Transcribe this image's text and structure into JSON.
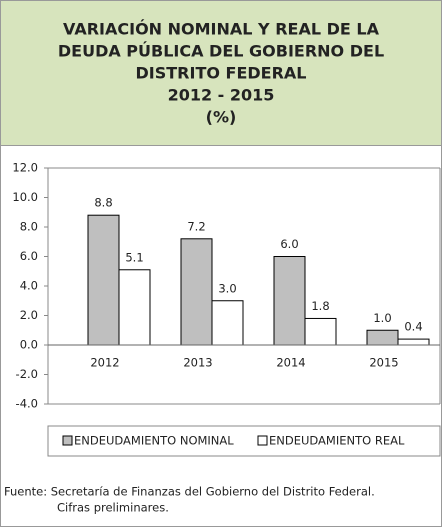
{
  "chart_data": {
    "type": "bar",
    "title": [
      "VARIACIÓN NOMINAL Y REAL DE LA",
      "DEUDA PÚBLICA DEL GOBIERNO DEL",
      "DISTRITO FEDERAL",
      "2012 - 2015",
      "(%)"
    ],
    "categories": [
      "2012",
      "2013",
      "2014",
      "2015"
    ],
    "series": [
      {
        "name": "ENDEUDAMIENTO NOMINAL",
        "color": "#bfbfbf",
        "values": [
          8.8,
          7.2,
          6.0,
          1.0
        ],
        "value_labels": [
          "8.8",
          "7.2",
          "6.0",
          "1.0"
        ]
      },
      {
        "name": "ENDEUDAMIENTO REAL",
        "color": "#ffffff",
        "values": [
          5.1,
          3.0,
          1.8,
          0.4
        ],
        "value_labels": [
          "5.1",
          "3.0",
          "1.8",
          "0.4"
        ]
      }
    ],
    "ylim": [
      -4,
      12
    ],
    "yticks": [
      {
        "value": -4,
        "label": "-4.0"
      },
      {
        "value": -2,
        "label": "-2.0"
      },
      {
        "value": 0,
        "label": "0.0"
      },
      {
        "value": 2,
        "label": "2.0"
      },
      {
        "value": 4,
        "label": "4.0"
      },
      {
        "value": 6,
        "label": "6.0"
      },
      {
        "value": 8,
        "label": "8.0"
      },
      {
        "value": 10,
        "label": "10.0"
      },
      {
        "value": 12,
        "label": "12.0"
      }
    ],
    "notes": [
      "Fuente: Secretaría de Finanzas del Gobierno del Distrito Federal.",
      "Cifras preliminares."
    ]
  }
}
